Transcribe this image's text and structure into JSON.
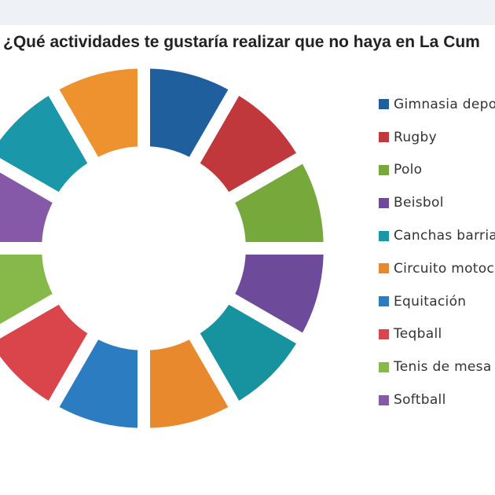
{
  "chart_data": {
    "type": "pie",
    "title": "¿Qué actividades te gustaría realizar que no haya en La Cum",
    "categories": [
      "Gimnasia depo",
      "Rugby",
      "Polo",
      "Beisbol",
      "Canchas barria",
      "Circuito motoc",
      "Equitación",
      "Teqball",
      "Tenis de mesa",
      "Softball"
    ],
    "legend_colors": [
      "#1f5f9e",
      "#c0383c",
      "#77a83b",
      "#6d4a9a",
      "#1a97a8",
      "#e8892e",
      "#2c7cc2",
      "#d9454b",
      "#86b84a",
      "#8559a8"
    ],
    "visible_slices": [
      {
        "color": "#1f5f9e",
        "value": 1
      },
      {
        "color": "#c0383c",
        "value": 1
      },
      {
        "color": "#77a83b",
        "value": 1
      },
      {
        "color": "#6d4a9a",
        "value": 1
      },
      {
        "color": "#17939f",
        "value": 1
      },
      {
        "color": "#e8892e",
        "value": 1
      },
      {
        "color": "#2c7cc2",
        "value": 1
      },
      {
        "color": "#d9454b",
        "value": 1
      },
      {
        "color": "#86b84a",
        "value": 1
      },
      {
        "color": "#8559a8",
        "value": 1
      },
      {
        "color": "#1a97a8",
        "value": 1
      },
      {
        "color": "#ee912f",
        "value": 1
      }
    ],
    "legend_position": "right",
    "donut": true
  }
}
